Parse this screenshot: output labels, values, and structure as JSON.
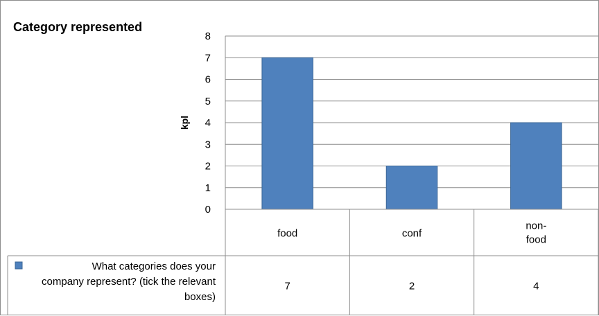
{
  "chart_data": {
    "type": "bar",
    "title": "Category represented",
    "ylabel": "kpl",
    "xlabel": "",
    "categories": [
      "food",
      "conf",
      "non-food"
    ],
    "series": [
      {
        "name": "What categories does your company represent? (tick the relevant boxes)",
        "values": [
          7,
          2,
          4
        ],
        "color": "#4f81bd"
      }
    ],
    "ylim": [
      0,
      8
    ],
    "yticks": [
      0,
      1,
      2,
      3,
      4,
      5,
      6,
      7,
      8
    ],
    "grid": true,
    "legend": "data-table"
  }
}
